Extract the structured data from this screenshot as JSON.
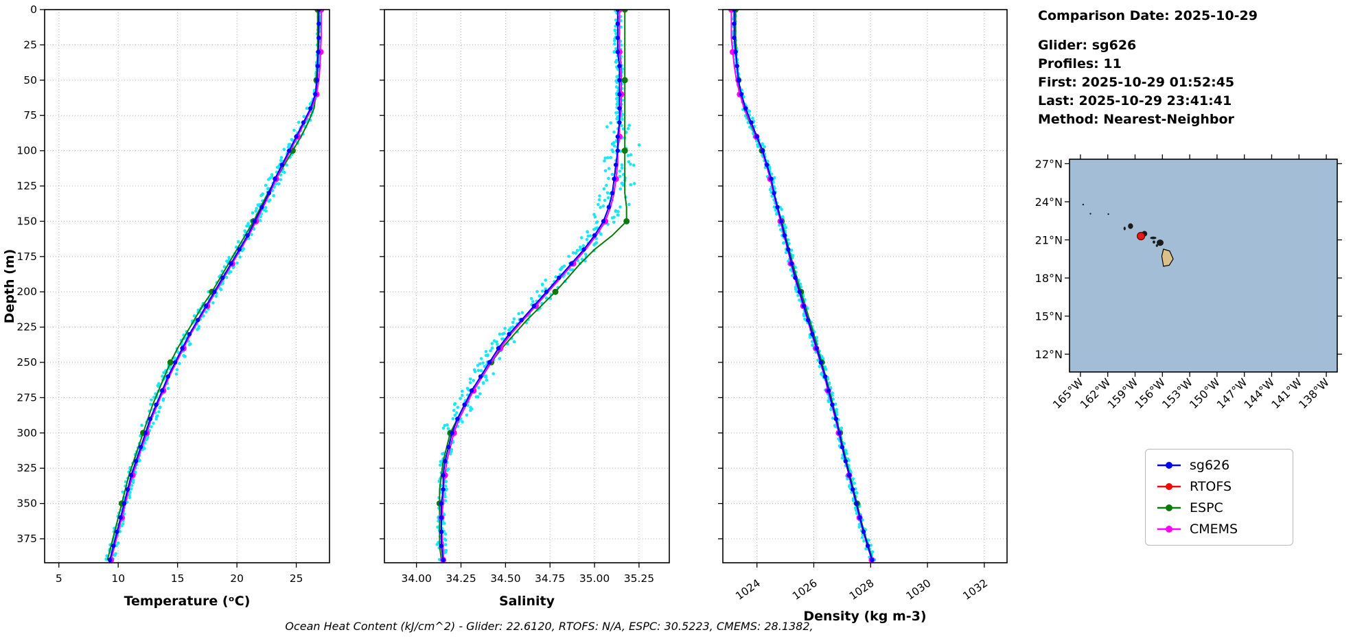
{
  "info": {
    "comparison_date": "Comparison Date: 2025-10-29",
    "glider": "Glider: sg626",
    "profiles": "Profiles: 11",
    "first": "First: 2025-10-29 01:52:45",
    "last": "Last: 2025-10-29 23:41:41",
    "method": "Method: Nearest-Neighbor"
  },
  "footer": "Ocean Heat Content (kJ/cm^2) - Glider: 22.6120,  RTOFS: N/A,  ESPC: 30.5223,  CMEMS: 28.1382,",
  "legend": {
    "items": [
      {
        "label": "sg626",
        "color": "#0000ff"
      },
      {
        "label": "RTOFS",
        "color": "#ff0000"
      },
      {
        "label": "ESPC",
        "color": "#0b7a0b"
      },
      {
        "label": "CMEMS",
        "color": "#ff00ff"
      }
    ]
  },
  "map": {
    "ocean_color": "#a3bdd6",
    "land_color": "#1b1b1b",
    "big_island_color": "#d9c189",
    "extent": {
      "lon_min": -166.2,
      "lon_max": -136.8,
      "lat_min": 10.6,
      "lat_max": 27.35
    },
    "lat_ticks": [
      27,
      24,
      21,
      18,
      15,
      12
    ],
    "lat_tick_labels": [
      "27°N",
      "24°N",
      "21°N",
      "18°N",
      "15°N",
      "12°N"
    ],
    "lon_ticks": [
      -165,
      -162,
      -159,
      -156,
      -153,
      -150,
      -147,
      -144,
      -141,
      -138
    ],
    "lon_tick_labels": [
      "165°W",
      "162°W",
      "159°W",
      "156°W",
      "153°W",
      "150°W",
      "147°W",
      "144°W",
      "141°W",
      "138°W"
    ],
    "islands": [
      {
        "name": "niihau",
        "lon": -160.15,
        "lat": 21.9,
        "rx": 0.12,
        "ry": 0.14
      },
      {
        "name": "kauai",
        "lon": -159.5,
        "lat": 22.08,
        "rx": 0.28,
        "ry": 0.22
      },
      {
        "name": "oahu",
        "lon": -157.97,
        "lat": 21.48,
        "rx": 0.3,
        "ry": 0.22
      },
      {
        "name": "molokai",
        "lon": -157.0,
        "lat": 21.15,
        "rx": 0.35,
        "ry": 0.1
      },
      {
        "name": "lanai",
        "lon": -156.93,
        "lat": 20.83,
        "rx": 0.14,
        "ry": 0.12
      },
      {
        "name": "kahoolawe",
        "lon": -156.6,
        "lat": 20.55,
        "rx": 0.12,
        "ry": 0.1
      },
      {
        "name": "maui",
        "lon": -156.25,
        "lat": 20.78,
        "rx": 0.38,
        "ry": 0.25
      },
      {
        "name": "nw-islet-1",
        "lon": -164.7,
        "lat": 23.78,
        "rx": 0.06,
        "ry": 0.06
      },
      {
        "name": "nw-islet-2",
        "lon": -163.9,
        "lat": 23.06,
        "rx": 0.05,
        "ry": 0.05
      },
      {
        "name": "nw-islet-3",
        "lon": -161.93,
        "lat": 23.03,
        "rx": 0.06,
        "ry": 0.06
      }
    ],
    "big_island": [
      [
        -155.88,
        20.27
      ],
      [
        -155.2,
        20.12
      ],
      [
        -154.82,
        19.5
      ],
      [
        -155.25,
        19.0
      ],
      [
        -155.88,
        18.92
      ],
      [
        -156.07,
        19.72
      ]
    ],
    "marker": {
      "lon": -158.35,
      "lat": 21.3,
      "color": "#e31a1c"
    }
  },
  "chart_data": [
    {
      "type": "line",
      "xlabel": "Temperature (ᵒC)",
      "ylabel": "Depth (m)",
      "xlim": [
        3.8,
        27.8
      ],
      "ylim": [
        0,
        392
      ],
      "xticks": [
        5,
        10,
        15,
        20,
        25
      ],
      "xtick_labels": [
        "5",
        "10",
        "15",
        "20",
        "25"
      ],
      "xtick_rotation": 0,
      "yticks": [
        0,
        25,
        50,
        75,
        100,
        125,
        150,
        175,
        200,
        225,
        250,
        275,
        300,
        325,
        350,
        375
      ],
      "grid": true,
      "scatter": {
        "name": "glider-raw",
        "color": "#00e5f5"
      },
      "depths": [
        0,
        10,
        20,
        30,
        40,
        50,
        60,
        70,
        80,
        90,
        100,
        110,
        120,
        130,
        140,
        150,
        160,
        170,
        180,
        190,
        200,
        210,
        220,
        230,
        240,
        250,
        260,
        270,
        280,
        290,
        300,
        310,
        320,
        330,
        340,
        350,
        360,
        370,
        380,
        390
      ],
      "series": [
        {
          "name": "sg626",
          "color": "#0000ff",
          "zorder": 3,
          "marker_every": 1,
          "marker_r": 3.2,
          "values": [
            26.9,
            26.9,
            26.9,
            26.85,
            26.8,
            26.75,
            26.6,
            26.2,
            25.6,
            25.0,
            24.4,
            23.8,
            23.2,
            22.7,
            22.1,
            21.5,
            20.9,
            20.2,
            19.5,
            18.8,
            18.1,
            17.4,
            16.7,
            16.0,
            15.4,
            14.8,
            14.2,
            13.7,
            13.2,
            12.7,
            12.3,
            11.9,
            11.5,
            11.1,
            10.8,
            10.5,
            10.2,
            9.9,
            9.6,
            9.3
          ]
        },
        {
          "name": "ESPC",
          "color": "#0b7a0b",
          "zorder": 1,
          "marker_every": 5,
          "marker_r": 4.5,
          "values": [
            26.8,
            26.8,
            26.8,
            26.8,
            26.75,
            26.7,
            26.65,
            26.5,
            26.0,
            25.4,
            24.7,
            24.0,
            23.3,
            22.6,
            22.0,
            21.4,
            20.7,
            20.0,
            19.3,
            18.6,
            17.9,
            17.1,
            16.4,
            15.7,
            15.0,
            14.4,
            13.9,
            13.4,
            12.9,
            12.5,
            12.1,
            11.7,
            11.3,
            10.9,
            10.6,
            10.3,
            10.0,
            9.7,
            9.4,
            9.1
          ]
        },
        {
          "name": "CMEMS",
          "color": "#ff00ff",
          "zorder": 2,
          "marker_every": 3,
          "marker_r": 4.5,
          "values": [
            27.1,
            27.1,
            27.1,
            27.05,
            27.0,
            26.9,
            26.7,
            26.3,
            25.7,
            25.1,
            24.5,
            23.9,
            23.3,
            22.8,
            22.2,
            21.6,
            21.0,
            20.3,
            19.6,
            18.9,
            18.2,
            17.5,
            16.8,
            16.1,
            15.5,
            14.9,
            14.3,
            13.8,
            13.3,
            12.8,
            12.4,
            12.0,
            11.6,
            11.2,
            10.9,
            10.6,
            10.3,
            10.0,
            9.7,
            9.4
          ]
        }
      ]
    },
    {
      "type": "line",
      "xlabel": "Salinity",
      "ylabel": "",
      "xlim": [
        33.82,
        35.42
      ],
      "ylim": [
        0,
        392
      ],
      "xticks": [
        34.0,
        34.25,
        34.5,
        34.75,
        35.0,
        35.25
      ],
      "xtick_labels": [
        "34.00",
        "34.25",
        "34.50",
        "34.75",
        "35.00",
        "35.25"
      ],
      "xtick_rotation": 0,
      "yticks": [
        0,
        25,
        50,
        75,
        100,
        125,
        150,
        175,
        200,
        225,
        250,
        275,
        300,
        325,
        350,
        375
      ],
      "grid": true,
      "scatter": {
        "name": "glider-raw",
        "color": "#00e5f5"
      },
      "depths": [
        0,
        10,
        20,
        30,
        40,
        50,
        60,
        70,
        80,
        90,
        100,
        110,
        120,
        130,
        140,
        150,
        160,
        170,
        180,
        190,
        200,
        210,
        220,
        230,
        240,
        250,
        260,
        270,
        280,
        290,
        300,
        310,
        320,
        330,
        340,
        350,
        360,
        370,
        380,
        390
      ],
      "series": [
        {
          "name": "sg626",
          "color": "#0000ff",
          "zorder": 3,
          "marker_every": 1,
          "marker_r": 3.2,
          "values": [
            35.13,
            35.13,
            35.13,
            35.13,
            35.14,
            35.14,
            35.14,
            35.14,
            35.14,
            35.13,
            35.13,
            35.12,
            35.11,
            35.1,
            35.08,
            35.05,
            35.0,
            34.94,
            34.87,
            34.8,
            34.73,
            34.66,
            34.59,
            34.52,
            34.46,
            34.41,
            34.36,
            34.31,
            34.27,
            34.23,
            34.2,
            34.18,
            34.16,
            34.15,
            34.15,
            34.14,
            34.14,
            34.14,
            34.14,
            34.15
          ]
        },
        {
          "name": "ESPC",
          "color": "#0b7a0b",
          "zorder": 1,
          "marker_every": 5,
          "marker_r": 4.5,
          "values": [
            35.17,
            35.17,
            35.17,
            35.17,
            35.17,
            35.17,
            35.17,
            35.17,
            35.17,
            35.17,
            35.17,
            35.17,
            35.17,
            35.17,
            35.18,
            35.18,
            35.1,
            35.0,
            34.92,
            34.85,
            34.78,
            34.7,
            34.62,
            34.55,
            34.48,
            34.42,
            34.37,
            34.32,
            34.27,
            34.23,
            34.19,
            34.17,
            34.15,
            34.14,
            34.13,
            34.13,
            34.13,
            34.13,
            34.13,
            34.14
          ]
        },
        {
          "name": "CMEMS",
          "color": "#ff00ff",
          "zorder": 2,
          "marker_every": 3,
          "marker_r": 4.5,
          "values": [
            35.14,
            35.14,
            35.14,
            35.14,
            35.15,
            35.15,
            35.15,
            35.15,
            35.14,
            35.14,
            35.13,
            35.13,
            35.12,
            35.11,
            35.09,
            35.06,
            35.01,
            34.95,
            34.88,
            34.81,
            34.74,
            34.67,
            34.6,
            34.53,
            34.47,
            34.42,
            34.37,
            34.32,
            34.28,
            34.24,
            34.21,
            34.19,
            34.17,
            34.16,
            34.15,
            34.15,
            34.14,
            34.14,
            34.15,
            34.15
          ]
        }
      ]
    },
    {
      "type": "line",
      "xlabel": "Density (kg m-3)",
      "ylabel": "",
      "xlim": [
        1022.8,
        1032.8
      ],
      "ylim": [
        0,
        392
      ],
      "xticks": [
        1024,
        1026,
        1028,
        1030,
        1032
      ],
      "xtick_labels": [
        "1024",
        "1026",
        "1028",
        "1030",
        "1032"
      ],
      "xtick_rotation": -35,
      "yticks": [
        0,
        25,
        50,
        75,
        100,
        125,
        150,
        175,
        200,
        225,
        250,
        275,
        300,
        325,
        350,
        375
      ],
      "grid": true,
      "scatter": {
        "name": "glider-raw",
        "color": "#00e5f5"
      },
      "depths": [
        0,
        10,
        20,
        30,
        40,
        50,
        60,
        70,
        80,
        90,
        100,
        110,
        120,
        130,
        140,
        150,
        160,
        170,
        180,
        190,
        200,
        210,
        220,
        230,
        240,
        250,
        260,
        270,
        280,
        290,
        300,
        310,
        320,
        330,
        340,
        350,
        360,
        370,
        380,
        390
      ],
      "series": [
        {
          "name": "sg626",
          "color": "#0000ff",
          "zorder": 3,
          "marker_every": 1,
          "marker_r": 3.2,
          "values": [
            1023.2,
            1023.2,
            1023.2,
            1023.25,
            1023.3,
            1023.35,
            1023.45,
            1023.6,
            1023.8,
            1024.0,
            1024.2,
            1024.35,
            1024.5,
            1024.6,
            1024.72,
            1024.85,
            1024.97,
            1025.1,
            1025.22,
            1025.35,
            1025.5,
            1025.65,
            1025.8,
            1025.95,
            1026.1,
            1026.25,
            1026.4,
            1026.52,
            1026.65,
            1026.78,
            1026.9,
            1027.0,
            1027.12,
            1027.25,
            1027.37,
            1027.5,
            1027.62,
            1027.75,
            1027.9,
            1028.05
          ]
        },
        {
          "name": "ESPC",
          "color": "#0b7a0b",
          "zorder": 1,
          "marker_every": 5,
          "marker_r": 4.5,
          "values": [
            1023.25,
            1023.25,
            1023.25,
            1023.27,
            1023.3,
            1023.35,
            1023.42,
            1023.55,
            1023.75,
            1023.97,
            1024.18,
            1024.33,
            1024.48,
            1024.6,
            1024.73,
            1024.87,
            1025.0,
            1025.13,
            1025.26,
            1025.4,
            1025.55,
            1025.7,
            1025.85,
            1026.0,
            1026.14,
            1026.28,
            1026.42,
            1026.55,
            1026.68,
            1026.8,
            1026.92,
            1027.03,
            1027.15,
            1027.27,
            1027.4,
            1027.52,
            1027.64,
            1027.77,
            1027.92,
            1028.07
          ]
        },
        {
          "name": "CMEMS",
          "color": "#ff00ff",
          "zorder": 2,
          "marker_every": 3,
          "marker_r": 4.5,
          "values": [
            1023.1,
            1023.1,
            1023.1,
            1023.15,
            1023.2,
            1023.28,
            1023.4,
            1023.55,
            1023.77,
            1023.98,
            1024.18,
            1024.33,
            1024.47,
            1024.58,
            1024.7,
            1024.83,
            1024.95,
            1025.08,
            1025.2,
            1025.33,
            1025.48,
            1025.63,
            1025.78,
            1025.93,
            1026.08,
            1026.23,
            1026.38,
            1026.5,
            1026.63,
            1026.76,
            1026.88,
            1026.99,
            1027.11,
            1027.24,
            1027.36,
            1027.49,
            1027.61,
            1027.74,
            1027.89,
            1028.04
          ]
        }
      ]
    }
  ]
}
